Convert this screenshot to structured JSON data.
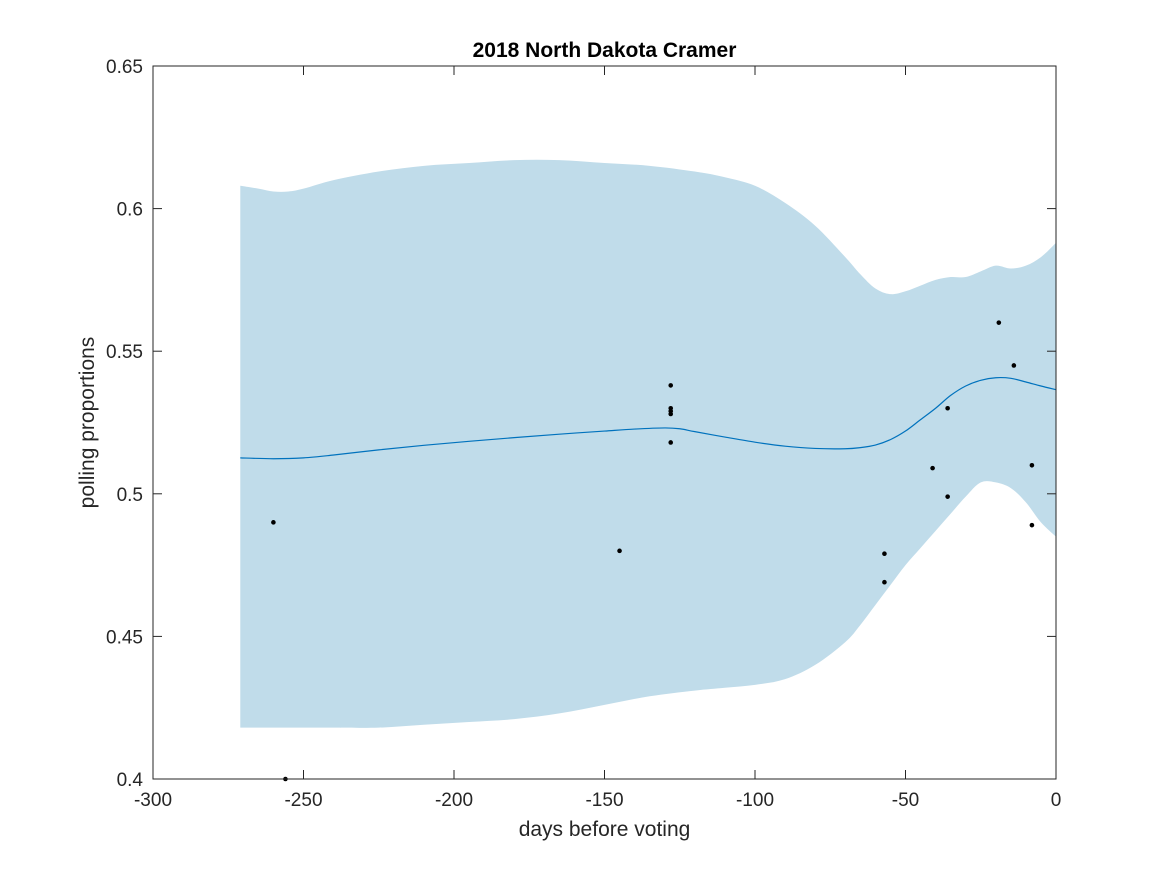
{
  "chart_data": {
    "type": "line",
    "title": "2018 North Dakota Cramer",
    "xlabel": "days before voting",
    "ylabel": "polling proportions",
    "xlim": [
      -300,
      0
    ],
    "ylim": [
      0.4,
      0.65
    ],
    "xticks": [
      -300,
      -250,
      -200,
      -150,
      -100,
      -50,
      0
    ],
    "xtick_labels": [
      "-300",
      "-250",
      "-200",
      "-150",
      "-100",
      "-50",
      "0"
    ],
    "yticks": [
      0.4,
      0.45,
      0.5,
      0.55,
      0.6,
      0.65
    ],
    "ytick_labels": [
      "0.4",
      "0.45",
      "0.5",
      "0.55",
      "0.6",
      "0.65"
    ],
    "grid": false,
    "colors": {
      "band": "#c0dcea",
      "line": "#0072bd",
      "points": "#000000",
      "axes": "#262626"
    },
    "series": [
      {
        "type": "area",
        "x": [
          -271,
          -265,
          -260,
          -255,
          -250,
          -240,
          -225,
          -210,
          -195,
          -180,
          -165,
          -150,
          -135,
          -120,
          -110,
          -100,
          -90,
          -80,
          -70,
          -65,
          -60,
          -55,
          -50,
          -45,
          -40,
          -35,
          -30,
          -25,
          -20,
          -15,
          -10,
          -5,
          0
        ],
        "upper": [
          0.608,
          0.607,
          0.606,
          0.606,
          0.607,
          0.61,
          0.613,
          0.615,
          0.616,
          0.617,
          0.617,
          0.616,
          0.615,
          0.613,
          0.611,
          0.608,
          0.602,
          0.594,
          0.583,
          0.577,
          0.572,
          0.57,
          0.571,
          0.573,
          0.575,
          0.576,
          0.576,
          0.578,
          0.58,
          0.579,
          0.58,
          0.583,
          0.588
        ],
        "lower": [
          0.418,
          0.418,
          0.418,
          0.418,
          0.418,
          0.418,
          0.418,
          0.419,
          0.42,
          0.421,
          0.423,
          0.426,
          0.429,
          0.431,
          0.432,
          0.433,
          0.435,
          0.44,
          0.448,
          0.454,
          0.461,
          0.468,
          0.475,
          0.481,
          0.487,
          0.493,
          0.499,
          0.504,
          0.504,
          0.502,
          0.497,
          0.49,
          0.485
        ]
      },
      {
        "type": "line",
        "x": [
          -271,
          -260,
          -250,
          -240,
          -225,
          -210,
          -195,
          -180,
          -165,
          -150,
          -140,
          -130,
          -125,
          -120,
          -110,
          -100,
          -90,
          -80,
          -70,
          -65,
          -60,
          -55,
          -50,
          -45,
          -40,
          -35,
          -30,
          -25,
          -20,
          -15,
          -10,
          -5,
          0
        ],
        "y": [
          0.5126,
          0.5123,
          0.5126,
          0.5136,
          0.5154,
          0.517,
          0.5184,
          0.5197,
          0.5209,
          0.522,
          0.5227,
          0.5231,
          0.5228,
          0.5218,
          0.5199,
          0.5181,
          0.5167,
          0.5159,
          0.5158,
          0.5162,
          0.5171,
          0.519,
          0.522,
          0.526,
          0.53,
          0.5345,
          0.5378,
          0.5398,
          0.5407,
          0.5405,
          0.5392,
          0.5378,
          0.5365
        ]
      },
      {
        "type": "scatter",
        "x": [
          -260,
          -256,
          -145,
          -128,
          -128,
          -128,
          -128,
          -128,
          -57,
          -57,
          -41,
          -36,
          -36,
          -19,
          -14,
          -8,
          -8
        ],
        "y": [
          0.49,
          0.4,
          0.48,
          0.538,
          0.53,
          0.529,
          0.528,
          0.518,
          0.479,
          0.469,
          0.509,
          0.53,
          0.499,
          0.56,
          0.545,
          0.51,
          0.489
        ]
      }
    ]
  }
}
